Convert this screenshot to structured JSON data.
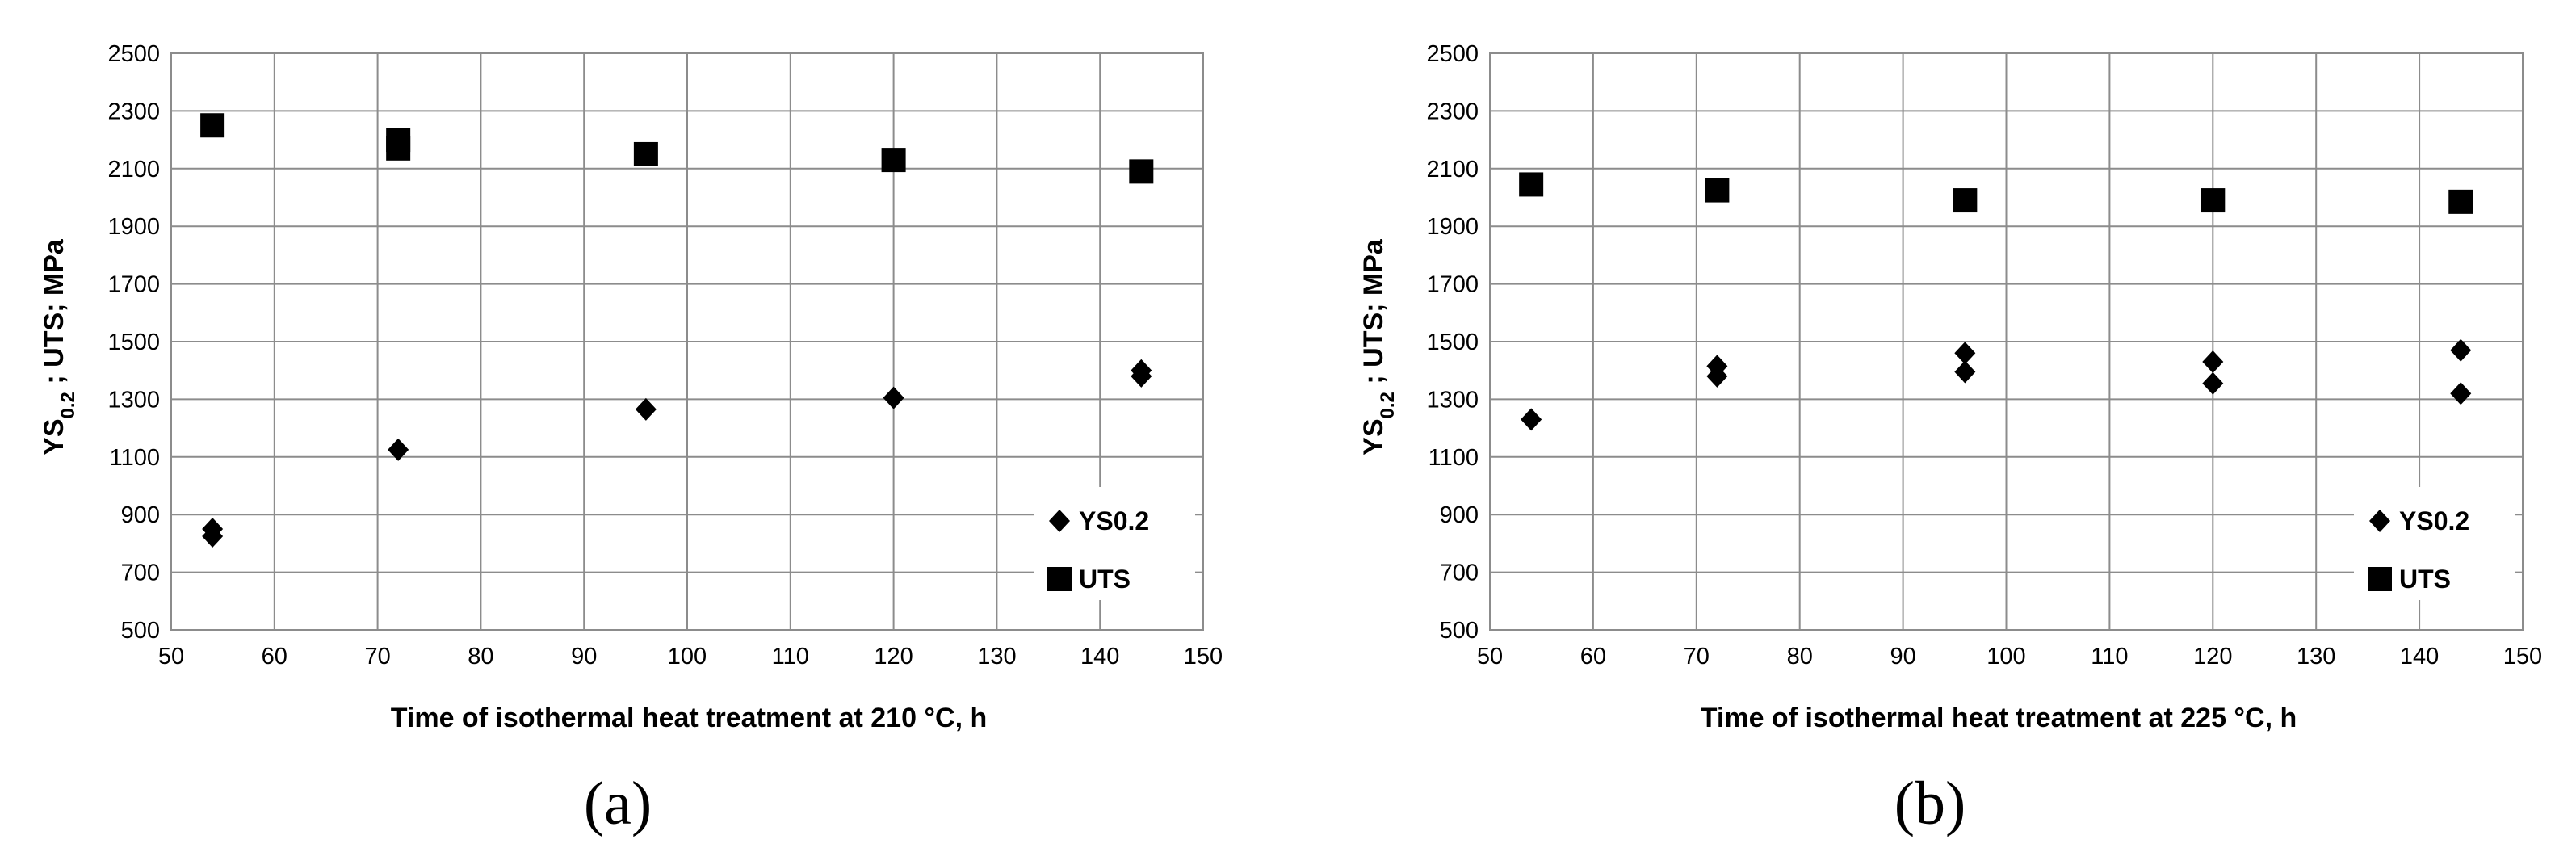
{
  "chart_data": [
    {
      "type": "scatter",
      "caption": "(a)",
      "xlabel": "Time of isothermal heat treatment at 210 °C, h",
      "ylabel": "YS0.2 ; UTS;  MPa",
      "xlim": [
        50,
        150
      ],
      "ylim": [
        500,
        2500
      ],
      "xticks": [
        50,
        60,
        70,
        80,
        90,
        100,
        110,
        120,
        130,
        140,
        150
      ],
      "yticks": [
        500,
        700,
        900,
        1100,
        1300,
        1500,
        1700,
        1900,
        2100,
        2300,
        2500
      ],
      "grid": true,
      "legend_position": "bottom-right",
      "series": [
        {
          "name": "YS0.2",
          "marker": "diamond",
          "x": [
            54,
            54,
            72,
            96,
            120,
            144,
            144
          ],
          "y": [
            850,
            825,
            1125,
            1265,
            1305,
            1400,
            1380
          ]
        },
        {
          "name": "UTS",
          "marker": "square",
          "x": [
            54,
            72,
            72,
            96,
            120,
            144
          ],
          "y": [
            2250,
            2200,
            2170,
            2150,
            2130,
            2090
          ]
        }
      ]
    },
    {
      "type": "scatter",
      "caption": "(b)",
      "xlabel": "Time of isothermal heat treatment at  225 °C, h",
      "ylabel": "YS0.2 ; UTS;  MPa",
      "xlim": [
        50,
        150
      ],
      "ylim": [
        500,
        2500
      ],
      "xticks": [
        50,
        60,
        70,
        80,
        90,
        100,
        110,
        120,
        130,
        140,
        150
      ],
      "yticks": [
        500,
        700,
        900,
        1100,
        1300,
        1500,
        1700,
        1900,
        2100,
        2300,
        2500
      ],
      "grid": true,
      "legend_position": "bottom-right",
      "series": [
        {
          "name": "YS0.2",
          "marker": "diamond",
          "x": [
            54,
            72,
            72,
            96,
            96,
            120,
            120,
            144,
            144
          ],
          "y": [
            1230,
            1415,
            1380,
            1460,
            1395,
            1430,
            1355,
            1470,
            1320
          ]
        },
        {
          "name": "UTS",
          "marker": "square",
          "x": [
            54,
            72,
            96,
            120,
            144
          ],
          "y": [
            2045,
            2025,
            1990,
            1990,
            1985
          ]
        }
      ]
    }
  ]
}
